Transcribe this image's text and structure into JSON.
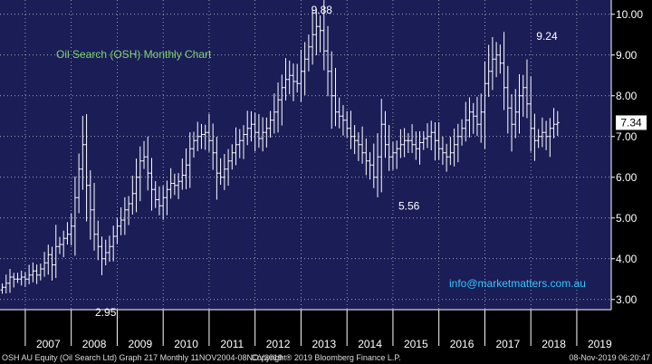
{
  "colors": {
    "plot_background": "#1a1d56",
    "axis_background": "#000000",
    "grid": "#d0d0d0",
    "bars": "#ffffff",
    "title": "#7fd66a",
    "contact": "#33c8ff",
    "last_value_badge": "#ffffff"
  },
  "chart_title": "Oil Search (OSH) Monthly Chart",
  "contact": "info@marketmatters.com.au",
  "footer": {
    "left": "OSH AU Equity (Oil Search Ltd) Graph 217  Monthly 11NOV2004-08NOV2019",
    "center": "Copyright® 2019 Bloomberg Finance L.P.",
    "right": "08-Nov-2019 06:20:47"
  },
  "last_value": "7.34",
  "chart_data": {
    "type": "ohlc",
    "title": "Oil Search (OSH) Monthly Chart",
    "xlabel": "",
    "ylabel": "",
    "ylim": [
      2.75,
      10.35
    ],
    "xlim": [
      2006.45,
      2019.75
    ],
    "grid": true,
    "yticks": [
      "3.00",
      "4.00",
      "5.00",
      "6.00",
      "7.00",
      "8.00",
      "9.00",
      "10.00"
    ],
    "ytick_values": [
      3,
      4,
      5,
      6,
      7,
      8,
      9,
      10
    ],
    "xticks": [
      "2007",
      "2008",
      "2009",
      "2010",
      "2011",
      "2012",
      "2013",
      "2014",
      "2015",
      "2016",
      "2017",
      "2018",
      "2019"
    ],
    "annotations": [
      {
        "text": "9.88",
        "x": 2013.45,
        "y": 9.88
      },
      {
        "text": "9.24",
        "x": 2018.35,
        "y": 9.24
      },
      {
        "text": "5.56",
        "x": 2015.35,
        "y": 5.56
      },
      {
        "text": "2.95",
        "x": 2008.75,
        "y": 2.95
      }
    ],
    "series": [
      {
        "start": 2006.5,
        "values": [
          3.3,
          3.4,
          3.55,
          3.5,
          3.5,
          3.55,
          3.5,
          3.6,
          3.7,
          3.6,
          3.75,
          3.9,
          4.1,
          3.85,
          4.3,
          4.35,
          4.5,
          4.6,
          4.8,
          5.5,
          6.2,
          6.8,
          5.8,
          5.2,
          4.6,
          4.3,
          4.0,
          4.15,
          4.3,
          4.55,
          4.8,
          4.95,
          5.2,
          5.35,
          5.6,
          6.0,
          6.4,
          6.5,
          6.1,
          5.7,
          5.45,
          5.3,
          5.5,
          5.7,
          5.85,
          5.8,
          5.9,
          6.05,
          6.3,
          6.7,
          6.9,
          7.0,
          7.05,
          7.1,
          6.9,
          6.6,
          6.1,
          6.0,
          6.2,
          6.4,
          6.6,
          6.8,
          6.9,
          7.05,
          7.2,
          7.3,
          7.1,
          6.95,
          7.1,
          7.2,
          7.4,
          7.6,
          7.9,
          8.2,
          8.4,
          8.5,
          8.35,
          8.3,
          8.6,
          8.9,
          9.2,
          9.5,
          9.7,
          9.6,
          9.1,
          8.6,
          8.0,
          7.6,
          7.5,
          7.4,
          7.2,
          7.0,
          6.9,
          6.8,
          6.6,
          6.4,
          6.3,
          6.0,
          6.5,
          7.3,
          6.8,
          6.5,
          6.6,
          6.7,
          6.8,
          6.9,
          6.9,
          6.8,
          6.7,
          6.85,
          6.95,
          7.0,
          7.1,
          6.9,
          6.7,
          6.6,
          6.5,
          6.6,
          6.8,
          7.0,
          7.2,
          7.4,
          7.6,
          7.5,
          7.3,
          7.6,
          8.3,
          8.6,
          8.9,
          9.0,
          8.8,
          8.2,
          7.7,
          7.3,
          7.6,
          8.0,
          8.2,
          7.8,
          7.2,
          6.9,
          7.0,
          7.1,
          7.0,
          7.2,
          7.3,
          7.34
        ]
      }
    ]
  }
}
